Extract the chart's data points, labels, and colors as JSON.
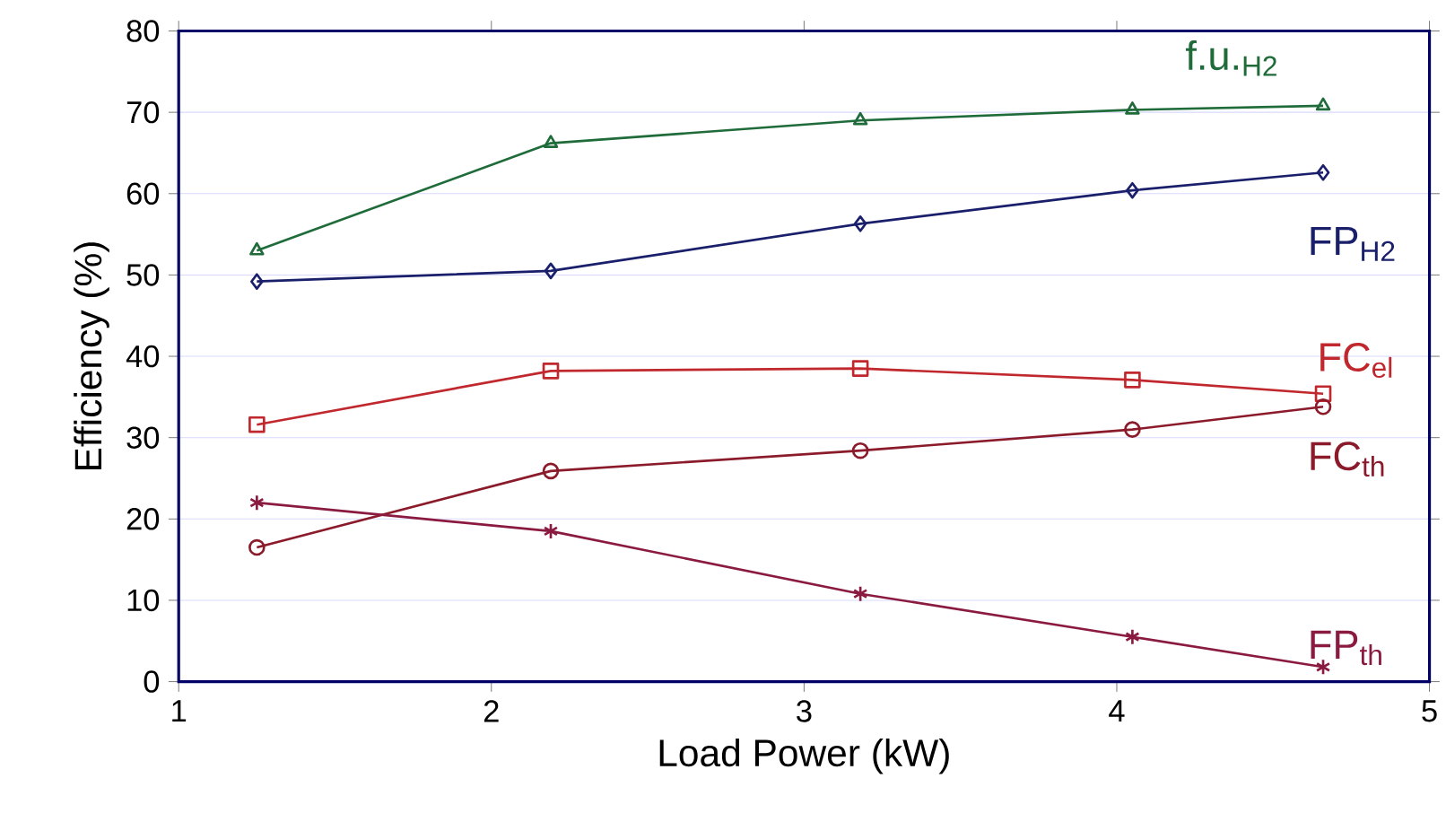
{
  "chart_data": {
    "type": "line",
    "xlabel": "Load Power (kW)",
    "ylabel": "Efficiency (%)",
    "xlim": [
      1,
      5
    ],
    "ylim": [
      0,
      80
    ],
    "xticks": [
      1,
      2,
      3,
      4,
      5
    ],
    "yticks": [
      0,
      10,
      20,
      30,
      40,
      50,
      60,
      70,
      80
    ],
    "grid": "y",
    "line_style": "solid",
    "series": [
      {
        "name": "f.u.$_{H2}$",
        "color": "#1f6b3a",
        "marker": "triangle",
        "x": [
          1.25,
          2.19,
          3.18,
          4.05,
          4.66
        ],
        "values": [
          53,
          66.2,
          69,
          70.3,
          70.8
        ]
      },
      {
        "name": "FP$_{H2}$",
        "color": "#1a1f6b",
        "marker": "diamond",
        "x": [
          1.25,
          2.19,
          3.18,
          4.05,
          4.66
        ],
        "values": [
          49.2,
          50.5,
          56.3,
          60.4,
          62.6
        ]
      },
      {
        "name": "FC$_{el}$",
        "color": "#c0282e",
        "marker": "square",
        "x": [
          1.25,
          2.19,
          3.18,
          4.05,
          4.66
        ],
        "values": [
          31.6,
          38.2,
          38.5,
          37.1,
          35.4
        ]
      },
      {
        "name": "FC$_{th}$",
        "color": "#8b1a2a",
        "marker": "circle",
        "x": [
          1.25,
          2.19,
          3.18,
          4.05,
          4.66
        ],
        "values": [
          16.5,
          25.9,
          28.4,
          31,
          33.8
        ]
      },
      {
        "name": "FP$_{th}$",
        "color": "#8b1a40",
        "marker": "cross",
        "x": [
          1.25,
          2.19,
          3.18,
          4.05,
          4.66
        ],
        "values": [
          22,
          18.5,
          10.8,
          5.5,
          1.8
        ]
      }
    ]
  }
}
